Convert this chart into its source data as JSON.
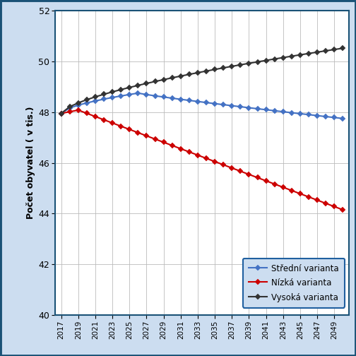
{
  "ylabel": "Počet obyvatel ( v tis.)",
  "ylim": [
    40,
    52
  ],
  "yticks": [
    40,
    42,
    44,
    46,
    48,
    50,
    52
  ],
  "bg_color": "#ccddf0",
  "plot_bg": "#ffffff",
  "border_color": "#1a5276",
  "color_stredni": "#4472c4",
  "color_nizka": "#cc0000",
  "color_vysoka": "#333333",
  "legend_stredni": "Střední varianta",
  "legend_nizka": "Nízká varianta",
  "legend_vysoka": "Vysoká varianta",
  "legend_border": "#2060a0"
}
